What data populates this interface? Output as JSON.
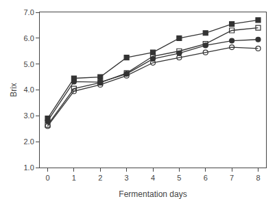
{
  "chart_data": {
    "type": "line",
    "x": [
      0,
      1,
      2,
      3,
      4,
      5,
      6,
      7,
      8
    ],
    "series": [
      {
        "color": "#333333",
        "marker": "square",
        "values": [
          2.9,
          4.45,
          4.5,
          5.25,
          5.45,
          6.0,
          6.2,
          6.55,
          6.7
        ]
      },
      {
        "color": "#333333",
        "marker": "square-open",
        "values": [
          2.65,
          4.05,
          4.28,
          4.65,
          5.3,
          5.5,
          5.78,
          6.3,
          6.4
        ]
      },
      {
        "color": "#333333",
        "marker": "circle",
        "values": [
          2.8,
          4.32,
          4.3,
          4.62,
          5.2,
          5.42,
          5.72,
          5.9,
          5.95
        ]
      },
      {
        "color": "#333333",
        "marker": "circle-open",
        "values": [
          2.6,
          3.95,
          4.2,
          4.55,
          5.05,
          5.25,
          5.45,
          5.65,
          5.6
        ]
      }
    ],
    "xlabel": "Fermentation days",
    "ylabel": "Brix",
    "xlim": [
      -0.3,
      8.3
    ],
    "xticks": [
      0,
      1,
      2,
      3,
      4,
      5,
      6,
      7,
      8
    ],
    "ylim": [
      1.0,
      7.0
    ],
    "yticks": [
      {
        "value": 1.0,
        "label": "1.0"
      },
      {
        "value": 2.0,
        "label": "2.0"
      },
      {
        "value": 3.0,
        "label": "3.0"
      },
      {
        "value": 4.0,
        "label": "4.0"
      },
      {
        "value": 5.0,
        "label": "5.0"
      },
      {
        "value": 6.0,
        "label": "6.0"
      },
      {
        "value": 7.0,
        "label": "7.0"
      }
    ],
    "grid": false
  }
}
